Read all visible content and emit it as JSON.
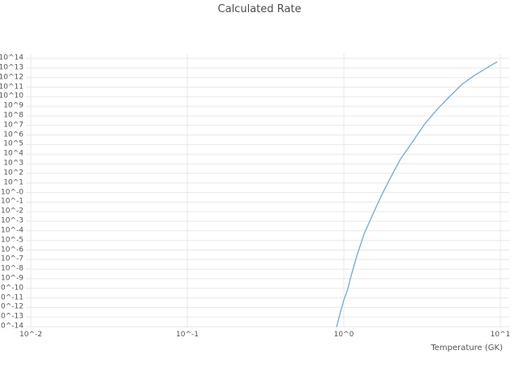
{
  "chart_data": {
    "type": "line",
    "title": "Calculated Rate",
    "xlabel": "Temperature (GK)",
    "ylabel": "",
    "xscale": "log",
    "yscale": "log",
    "grid": true,
    "legend": false,
    "line_color": "#74a9d8",
    "xlog_range": [
      -2.031,
      1.057
    ],
    "ylog_range": [
      -14.08,
      14.51
    ],
    "x_ticks": [
      {
        "log": -2,
        "label": "10^-2"
      },
      {
        "log": -1,
        "label": "10^-1"
      },
      {
        "log": 0,
        "label": "10^0"
      },
      {
        "log": 1,
        "label": "10^1"
      }
    ],
    "y_ticks": [
      {
        "log": 14,
        "label": "10^14"
      },
      {
        "log": 13,
        "label": "10^13"
      },
      {
        "log": 12,
        "label": "10^12"
      },
      {
        "log": 11,
        "label": "10^11"
      },
      {
        "log": 10,
        "label": "10^10"
      },
      {
        "log": 9,
        "label": "10^9"
      },
      {
        "log": 8,
        "label": "10^8"
      },
      {
        "log": 7,
        "label": "10^7"
      },
      {
        "log": 6,
        "label": "10^6"
      },
      {
        "log": 5,
        "label": "10^5"
      },
      {
        "log": 4,
        "label": "10^4"
      },
      {
        "log": 3,
        "label": "10^3"
      },
      {
        "log": 2,
        "label": "10^2"
      },
      {
        "log": 1,
        "label": "10^1"
      },
      {
        "log": 0,
        "label": "10^-0"
      },
      {
        "log": -1,
        "label": "10^-1"
      },
      {
        "log": -2,
        "label": "10^-2"
      },
      {
        "log": -3,
        "label": "10^-3"
      },
      {
        "log": -4,
        "label": "10^-4"
      },
      {
        "log": -5,
        "label": "10^-5"
      },
      {
        "log": -6,
        "label": "10^-6"
      },
      {
        "log": -7,
        "label": "10^-7"
      },
      {
        "log": -8,
        "label": "10^-8"
      },
      {
        "log": -9,
        "label": "10^-9"
      },
      {
        "log": -10,
        "label": "10^-10"
      },
      {
        "log": -11,
        "label": "10^-11"
      },
      {
        "log": -12,
        "label": "10^-12"
      },
      {
        "log": -13,
        "label": "10^-13"
      },
      {
        "log": -14,
        "label": "10^-14"
      }
    ],
    "series": [
      {
        "name": "Calculated Rate",
        "color": "#74a9d8",
        "x": [
          0.9,
          0.95,
          1.0,
          1.05,
          1.1,
          1.2,
          1.35,
          1.55,
          1.75,
          1.95,
          2.3,
          2.8,
          3.3,
          4.0,
          4.8,
          5.7,
          6.8,
          8.0,
          9.0,
          9.5
        ],
        "y": [
          1e-14,
          3e-13,
          6e-12,
          5e-11,
          1e-09,
          1.6e-07,
          5e-05,
          0.008,
          0.6,
          20,
          3000.0,
          300000.0,
          16000000.0,
          600000000.0,
          13000000000.0,
          200000000000.0,
          1600000000000.0,
          8000000000000.0,
          25000000000000.0,
          40000000000000.0
        ]
      }
    ]
  }
}
